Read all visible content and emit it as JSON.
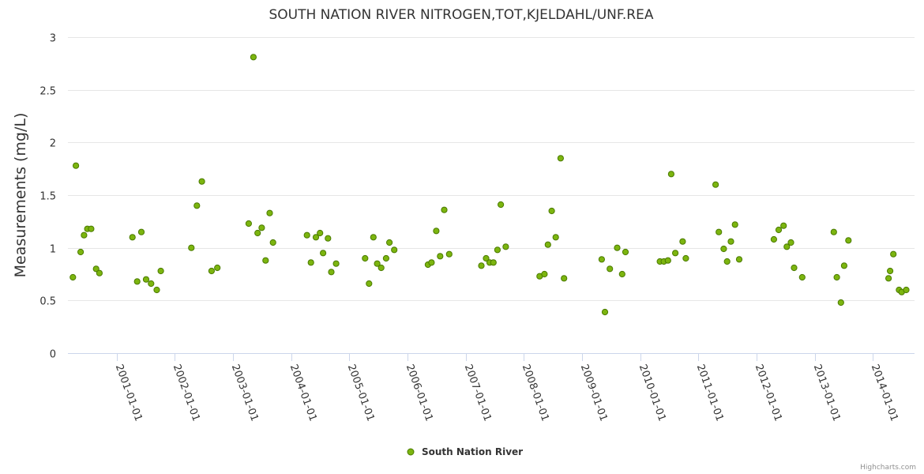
{
  "chart_data": {
    "type": "scatter",
    "title": "SOUTH NATION RIVER NITROGEN,TOT,KJELDAHL/UNF.REA",
    "xlabel": "",
    "ylabel": "Measurements (mg/L)",
    "ylim": [
      0,
      3
    ],
    "yticks": [
      "0",
      "0.5",
      "1",
      "1.5",
      "2",
      "2.5",
      "3"
    ],
    "xlim": [
      "2000-03-01",
      "2014-09-20"
    ],
    "xticks": [
      "2001-01-01",
      "2002-01-01",
      "2003-01-01",
      "2004-01-01",
      "2005-01-01",
      "2006-01-01",
      "2007-01-01",
      "2008-01-01",
      "2009-01-01",
      "2010-01-01",
      "2011-01-01",
      "2012-01-01",
      "2013-01-01",
      "2014-01-01"
    ],
    "grid": true,
    "legend_position": "bottom-center",
    "credits": "Highcharts.com",
    "series": [
      {
        "name": "South Nation River",
        "color": "#7cb50f",
        "border_color": "#4a7a00",
        "points": [
          [
            "2000-04-01",
            0.72
          ],
          [
            "2000-04-20",
            1.78
          ],
          [
            "2000-05-20",
            0.96
          ],
          [
            "2000-06-10",
            1.12
          ],
          [
            "2000-07-01",
            1.18
          ],
          [
            "2000-07-25",
            1.18
          ],
          [
            "2000-08-25",
            0.8
          ],
          [
            "2000-09-15",
            0.76
          ],
          [
            "2001-04-10",
            1.1
          ],
          [
            "2001-05-10",
            0.68
          ],
          [
            "2001-06-05",
            1.15
          ],
          [
            "2001-07-05",
            0.7
          ],
          [
            "2001-08-05",
            0.66
          ],
          [
            "2001-09-10",
            0.6
          ],
          [
            "2001-10-05",
            0.78
          ],
          [
            "2002-04-15",
            1.0
          ],
          [
            "2002-05-20",
            1.4
          ],
          [
            "2002-06-20",
            1.63
          ],
          [
            "2002-08-20",
            0.78
          ],
          [
            "2002-09-25",
            0.81
          ],
          [
            "2003-04-10",
            1.23
          ],
          [
            "2003-05-10",
            2.81
          ],
          [
            "2003-06-05",
            1.14
          ],
          [
            "2003-07-01",
            1.19
          ],
          [
            "2003-07-25",
            0.88
          ],
          [
            "2003-08-20",
            1.33
          ],
          [
            "2003-09-10",
            1.05
          ],
          [
            "2004-04-10",
            1.12
          ],
          [
            "2004-05-05",
            0.86
          ],
          [
            "2004-06-05",
            1.1
          ],
          [
            "2004-07-01",
            1.14
          ],
          [
            "2004-07-20",
            0.95
          ],
          [
            "2004-08-20",
            1.09
          ],
          [
            "2004-09-10",
            0.77
          ],
          [
            "2004-10-10",
            0.85
          ],
          [
            "2005-04-10",
            0.9
          ],
          [
            "2005-05-05",
            0.66
          ],
          [
            "2005-06-01",
            1.1
          ],
          [
            "2005-06-25",
            0.85
          ],
          [
            "2005-07-20",
            0.81
          ],
          [
            "2005-08-20",
            0.9
          ],
          [
            "2005-09-10",
            1.05
          ],
          [
            "2005-10-10",
            0.98
          ],
          [
            "2006-05-10",
            0.84
          ],
          [
            "2006-06-01",
            0.86
          ],
          [
            "2006-07-01",
            1.16
          ],
          [
            "2006-07-25",
            0.92
          ],
          [
            "2006-08-20",
            1.36
          ],
          [
            "2006-09-20",
            0.94
          ],
          [
            "2007-04-10",
            0.83
          ],
          [
            "2007-05-10",
            0.9
          ],
          [
            "2007-06-01",
            0.86
          ],
          [
            "2007-06-25",
            0.86
          ],
          [
            "2007-07-20",
            0.98
          ],
          [
            "2007-08-10",
            1.41
          ],
          [
            "2007-09-10",
            1.01
          ],
          [
            "2008-04-10",
            0.73
          ],
          [
            "2008-05-10",
            0.75
          ],
          [
            "2008-06-01",
            1.03
          ],
          [
            "2008-06-25",
            1.35
          ],
          [
            "2008-07-20",
            1.1
          ],
          [
            "2008-08-20",
            1.85
          ],
          [
            "2008-09-10",
            0.71
          ],
          [
            "2009-05-05",
            0.89
          ],
          [
            "2009-05-25",
            0.39
          ],
          [
            "2009-06-25",
            0.8
          ],
          [
            "2009-08-10",
            1.0
          ],
          [
            "2009-09-10",
            0.75
          ],
          [
            "2009-10-01",
            0.96
          ],
          [
            "2010-05-05",
            0.87
          ],
          [
            "2010-05-30",
            0.87
          ],
          [
            "2010-06-25",
            0.88
          ],
          [
            "2010-07-15",
            1.7
          ],
          [
            "2010-08-10",
            0.95
          ],
          [
            "2010-09-25",
            1.06
          ],
          [
            "2010-10-15",
            0.9
          ],
          [
            "2011-04-20",
            1.6
          ],
          [
            "2011-05-10",
            1.15
          ],
          [
            "2011-06-10",
            0.99
          ],
          [
            "2011-07-01",
            0.87
          ],
          [
            "2011-07-25",
            1.06
          ],
          [
            "2011-08-20",
            1.22
          ],
          [
            "2011-09-15",
            0.89
          ],
          [
            "2012-04-20",
            1.08
          ],
          [
            "2012-05-20",
            1.17
          ],
          [
            "2012-06-20",
            1.21
          ],
          [
            "2012-07-10",
            1.01
          ],
          [
            "2012-08-05",
            1.05
          ],
          [
            "2012-08-25",
            0.81
          ],
          [
            "2012-10-15",
            0.72
          ],
          [
            "2013-05-01",
            1.15
          ],
          [
            "2013-05-20",
            0.72
          ],
          [
            "2013-06-15",
            0.48
          ],
          [
            "2013-07-05",
            0.83
          ],
          [
            "2013-08-01",
            1.07
          ],
          [
            "2014-04-10",
            0.71
          ],
          [
            "2014-04-20",
            0.78
          ],
          [
            "2014-05-10",
            0.94
          ],
          [
            "2014-06-15",
            0.6
          ],
          [
            "2014-07-01",
            0.58
          ],
          [
            "2014-07-30",
            0.6
          ]
        ]
      }
    ]
  }
}
